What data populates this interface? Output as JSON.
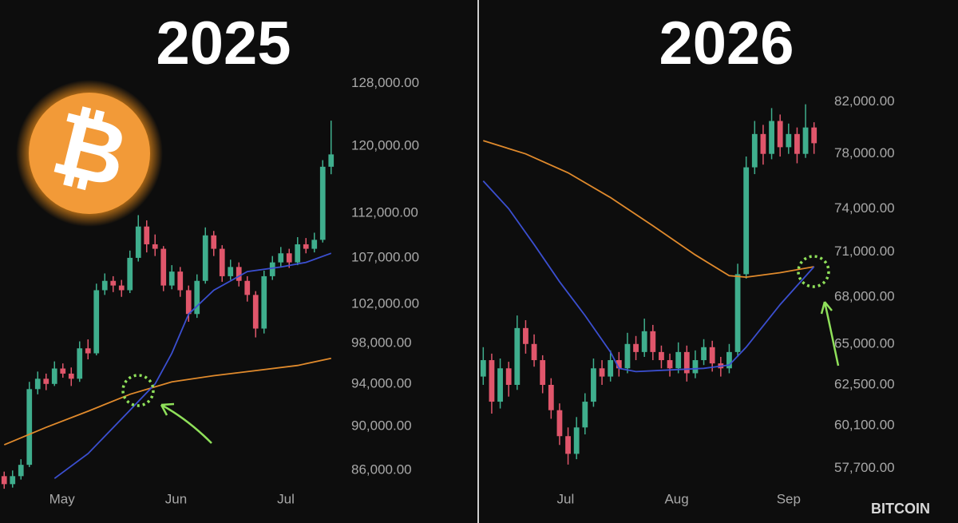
{
  "chart_data": [
    {
      "type": "candlestick",
      "title": "2025",
      "log_scale": true,
      "up_color": "#3fae8d",
      "down_color": "#e0566b",
      "candles": [
        [
          85500,
          85900,
          84400,
          84800
        ],
        [
          84800,
          86000,
          84500,
          85500
        ],
        [
          85500,
          87000,
          85200,
          86500
        ],
        [
          86500,
          94200,
          86300,
          93500
        ],
        [
          93500,
          95200,
          93000,
          94500
        ],
        [
          94500,
          95000,
          93400,
          94000
        ],
        [
          94000,
          96200,
          93800,
          95500
        ],
        [
          95500,
          96000,
          94600,
          95000
        ],
        [
          95000,
          95600,
          93800,
          94500
        ],
        [
          94500,
          98200,
          94200,
          97500
        ],
        [
          97500,
          98400,
          96400,
          97000
        ],
        [
          97000,
          104200,
          96800,
          103500
        ],
        [
          103500,
          105300,
          103000,
          104500
        ],
        [
          104500,
          105000,
          103300,
          104000
        ],
        [
          104000,
          104600,
          102800,
          103500
        ],
        [
          103500,
          107800,
          103200,
          107000
        ],
        [
          107000,
          111800,
          106600,
          110500
        ],
        [
          110500,
          111200,
          107600,
          108500
        ],
        [
          108500,
          109600,
          107200,
          108000
        ],
        [
          108000,
          108300,
          103400,
          104000
        ],
        [
          104000,
          106200,
          103600,
          105500
        ],
        [
          105500,
          106000,
          102800,
          103500
        ],
        [
          103500,
          104000,
          100200,
          101000
        ],
        [
          101000,
          105200,
          100600,
          104500
        ],
        [
          104500,
          110400,
          104200,
          109500
        ],
        [
          109500,
          110000,
          107200,
          108000
        ],
        [
          108000,
          108400,
          104400,
          105000
        ],
        [
          105000,
          106800,
          104600,
          106000
        ],
        [
          106000,
          106500,
          103900,
          104500
        ],
        [
          104500,
          105000,
          102300,
          103000
        ],
        [
          103000,
          103400,
          98600,
          99500
        ],
        [
          99500,
          105600,
          99000,
          105000
        ],
        [
          105000,
          107200,
          104600,
          106500
        ],
        [
          106500,
          108200,
          106000,
          107500
        ],
        [
          107500,
          108000,
          105900,
          106500
        ],
        [
          106500,
          109300,
          106200,
          108500
        ],
        [
          108500,
          109200,
          107500,
          108000
        ],
        [
          108000,
          109800,
          107600,
          109000
        ],
        [
          109000,
          118300,
          108700,
          117500
        ],
        [
          117500,
          123200,
          116600,
          119000
        ]
      ],
      "series": [
        {
          "color": "#e08a2c",
          "x": [
            0,
            5,
            10,
            15,
            20,
            25,
            30,
            35,
            39
          ],
          "values": [
            88300,
            89900,
            91400,
            93000,
            94200,
            94800,
            95300,
            95800,
            96500
          ]
        },
        {
          "color": "#3b4fd0",
          "x": [
            6,
            10,
            15,
            18,
            20,
            22,
            25,
            29,
            33,
            36,
            39
          ],
          "values": [
            85300,
            87500,
            91500,
            94000,
            97000,
            101000,
            103500,
            105500,
            106000,
            106500,
            107500
          ]
        }
      ],
      "xlim": [
        -0.5,
        39.5
      ],
      "xticks": [
        {
          "value": 6.9,
          "label": "May"
        },
        {
          "value": 20.5,
          "label": "Jun"
        },
        {
          "value": 33.6,
          "label": "Jul"
        }
      ],
      "ylim": [
        84200,
        130600
      ],
      "yticks": [
        {
          "value": 128000,
          "label": "128,000.00"
        },
        {
          "value": 120000,
          "label": "120,000.00"
        },
        {
          "value": 112000,
          "label": "112,000.00"
        },
        {
          "value": 107000,
          "label": "107,000.00"
        },
        {
          "value": 102000,
          "label": "102,000.00"
        },
        {
          "value": 98000,
          "label": "98,000.00"
        },
        {
          "value": 94000,
          "label": "94,000.00"
        },
        {
          "value": 90000,
          "label": "90,000.00"
        },
        {
          "value": 86000,
          "label": "86,000.00"
        }
      ]
    },
    {
      "type": "candlestick",
      "title": "2026",
      "log_scale": true,
      "up_color": "#3fae8d",
      "down_color": "#e0566b",
      "candles": [
        [
          63000,
          64800,
          62500,
          64000
        ],
        [
          64000,
          64400,
          60800,
          61500
        ],
        [
          61500,
          64100,
          61100,
          63500
        ],
        [
          63500,
          63900,
          61800,
          62500
        ],
        [
          62500,
          66800,
          62200,
          66000
        ],
        [
          66000,
          66500,
          64400,
          65000
        ],
        [
          65000,
          65600,
          63600,
          64000
        ],
        [
          64000,
          64300,
          62000,
          62500
        ],
        [
          62500,
          62900,
          60500,
          61000
        ],
        [
          61000,
          61400,
          59000,
          59500
        ],
        [
          59500,
          60000,
          57900,
          58500
        ],
        [
          58500,
          60600,
          58200,
          60000
        ],
        [
          60000,
          62000,
          59600,
          61500
        ],
        [
          61500,
          64100,
          61200,
          63500
        ],
        [
          63500,
          64000,
          62500,
          63000
        ],
        [
          63000,
          64600,
          62700,
          64000
        ],
        [
          64000,
          64500,
          63000,
          63500
        ],
        [
          63500,
          65700,
          63200,
          65000
        ],
        [
          65000,
          65500,
          64000,
          64500
        ],
        [
          64500,
          66600,
          64200,
          65800
        ],
        [
          65800,
          66200,
          64000,
          64500
        ],
        [
          64500,
          64900,
          63500,
          64000
        ],
        [
          64000,
          64400,
          63000,
          63500
        ],
        [
          63500,
          65100,
          63200,
          64500
        ],
        [
          64500,
          64900,
          62700,
          63200
        ],
        [
          63200,
          64600,
          62900,
          64000
        ],
        [
          64000,
          65300,
          63700,
          64800
        ],
        [
          64800,
          65200,
          63300,
          63800
        ],
        [
          63800,
          64200,
          63000,
          63500
        ],
        [
          63500,
          65000,
          63200,
          64500
        ],
        [
          64500,
          70200,
          64200,
          69500
        ],
        [
          69500,
          77800,
          69200,
          77000
        ],
        [
          77000,
          80500,
          76500,
          79500
        ],
        [
          79500,
          80200,
          77200,
          78000
        ],
        [
          78000,
          81500,
          77600,
          80500
        ],
        [
          80500,
          81000,
          77800,
          78500
        ],
        [
          78500,
          80300,
          78000,
          79500
        ],
        [
          79500,
          80000,
          77300,
          78000
        ],
        [
          78000,
          81800,
          77700,
          80000
        ],
        [
          80000,
          80400,
          78000,
          78800
        ]
      ],
      "series": [
        {
          "color": "#e08a2c",
          "x": [
            0,
            5,
            10,
            15,
            20,
            25,
            29,
            31,
            35,
            39
          ],
          "values": [
            79000,
            78000,
            76600,
            74800,
            72800,
            70800,
            69400,
            69300,
            69600,
            70000
          ]
        },
        {
          "color": "#3b4fd0",
          "x": [
            0,
            3,
            6,
            9,
            12,
            15,
            16,
            18,
            22,
            26,
            29,
            31,
            35,
            39
          ],
          "values": [
            76000,
            74000,
            71500,
            69000,
            66800,
            64500,
            63500,
            63300,
            63400,
            63500,
            63700,
            64800,
            67500,
            70000
          ]
        }
      ],
      "xlim": [
        -0.5,
        39.5
      ],
      "xticks": [
        {
          "value": 9.7,
          "label": "Jul"
        },
        {
          "value": 22.8,
          "label": "Aug"
        },
        {
          "value": 36.0,
          "label": "Sep"
        }
      ],
      "ylim": [
        57100,
        83100
      ],
      "yticks": [
        {
          "value": 82000,
          "label": "82,000.00"
        },
        {
          "value": 78000,
          "label": "78,000.00"
        },
        {
          "value": 74000,
          "label": "74,000.00"
        },
        {
          "value": 71000,
          "label": "71,000.00"
        },
        {
          "value": 68000,
          "label": "68,000.00"
        },
        {
          "value": 65000,
          "label": "65,000.00"
        },
        {
          "value": 62500,
          "label": "62,500.00"
        },
        {
          "value": 60100,
          "label": "60,100.00"
        },
        {
          "value": 57700,
          "label": "57,700.00"
        }
      ]
    }
  ],
  "logo_symbol": "₿",
  "watermark": "BITCOIN"
}
